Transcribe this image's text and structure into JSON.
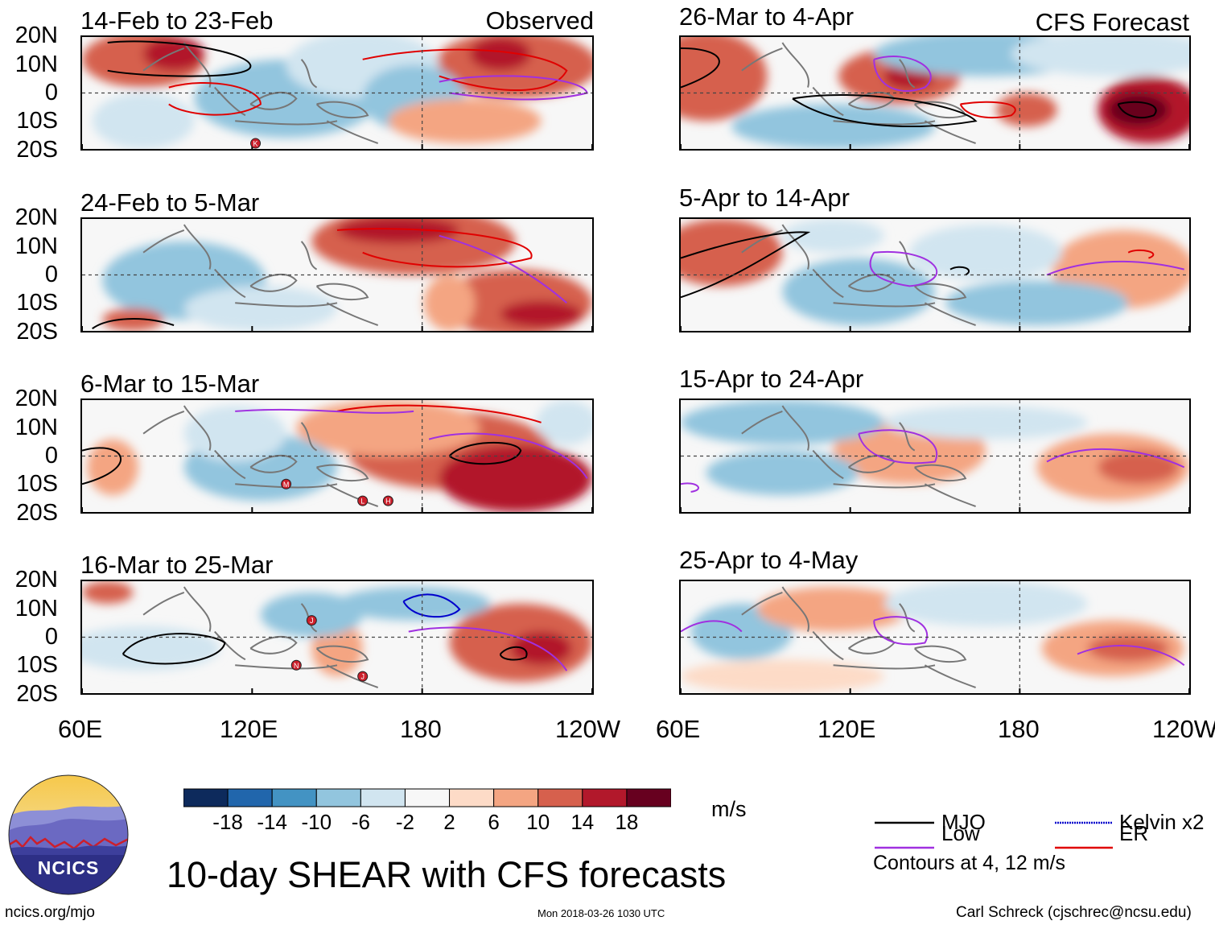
{
  "page": {
    "main_title": "10-day SHEAR with CFS forecasts",
    "url": "ncics.org/mjo",
    "timestamp": "Mon 2018-03-26 1030 UTC",
    "author": "Carl Schreck (cjschrec@ncsu.edu)",
    "logo_text": "NCICS"
  },
  "labels": {
    "observed": "Observed",
    "forecast": "CFS Forecast"
  },
  "axes": {
    "lat_ticks": [
      "20N",
      "10N",
      "0",
      "10S",
      "20S"
    ],
    "lon_ticks": [
      "60E",
      "120E",
      "180",
      "120W"
    ]
  },
  "colorbar": {
    "unit": "m/s",
    "tick_labels": [
      "-18",
      "-14",
      "-10",
      "-6",
      "-2",
      "2",
      "6",
      "10",
      "14",
      "18"
    ],
    "colors": [
      "#0d2a5c",
      "#2166ac",
      "#4393c3",
      "#92c5de",
      "#d1e5f0",
      "#f7f7f7",
      "#fddbc7",
      "#f4a582",
      "#d6604d",
      "#b2182b",
      "#67001f"
    ]
  },
  "legend": {
    "items": [
      {
        "label": "MJO",
        "color": "#000000"
      },
      {
        "label": "Low",
        "color": "#a030e0"
      },
      {
        "label": "Kelvin x2",
        "color": "#0000cc"
      },
      {
        "label": "ER",
        "color": "#e00000"
      }
    ],
    "note": "Contours at 4, 12 m/s"
  },
  "chart_data": [
    {
      "type": "heatmap",
      "title": "14-Feb to 23-Feb",
      "column": "Observed",
      "lon_range": [
        60,
        240
      ],
      "lat_range": [
        -20,
        20
      ],
      "storms": [
        "K"
      ]
    },
    {
      "type": "heatmap",
      "title": "24-Feb to 5-Mar",
      "column": "Observed",
      "lon_range": [
        60,
        240
      ],
      "lat_range": [
        -20,
        20
      ],
      "storms": []
    },
    {
      "type": "heatmap",
      "title": "6-Mar to 15-Mar",
      "column": "Observed",
      "lon_range": [
        60,
        240
      ],
      "lat_range": [
        -20,
        20
      ],
      "storms": [
        "M",
        "L",
        "H"
      ]
    },
    {
      "type": "heatmap",
      "title": "16-Mar to 25-Mar",
      "column": "Observed",
      "lon_range": [
        60,
        240
      ],
      "lat_range": [
        -20,
        20
      ],
      "storms": [
        "J",
        "N",
        "J"
      ]
    },
    {
      "type": "heatmap",
      "title": "26-Mar to 4-Apr",
      "column": "CFS Forecast",
      "lon_range": [
        60,
        240
      ],
      "lat_range": [
        -20,
        20
      ],
      "storms": []
    },
    {
      "type": "heatmap",
      "title": "5-Apr to 14-Apr",
      "column": "CFS Forecast",
      "lon_range": [
        60,
        240
      ],
      "lat_range": [
        -20,
        20
      ],
      "storms": []
    },
    {
      "type": "heatmap",
      "title": "15-Apr to 24-Apr",
      "column": "CFS Forecast",
      "lon_range": [
        60,
        240
      ],
      "lat_range": [
        -20,
        20
      ],
      "storms": []
    },
    {
      "type": "heatmap",
      "title": "25-Apr to 4-May",
      "column": "CFS Forecast",
      "lon_range": [
        60,
        240
      ],
      "lat_range": [
        -20,
        20
      ],
      "storms": []
    }
  ]
}
